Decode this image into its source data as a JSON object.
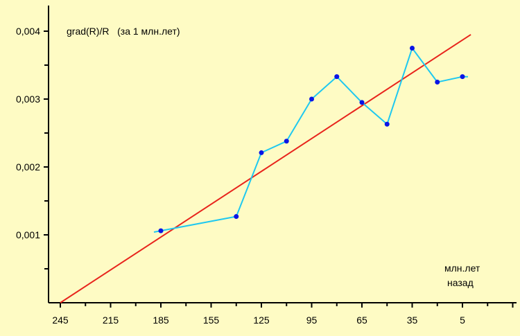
{
  "chart_data": {
    "type": "line",
    "title": "grad(R)/R   (за 1 млн.лет)",
    "xlabel_line1": "млн.лет",
    "xlabel_line2": "назад",
    "x_reversed": true,
    "xlim": [
      249,
      -37
    ],
    "ylim": [
      0,
      0.004
    ],
    "x_ticks": [
      245,
      215,
      185,
      155,
      125,
      95,
      65,
      35,
      5
    ],
    "x_tick_labels": [
      "245",
      "215",
      "185",
      "155",
      "125",
      "95",
      "65",
      "35",
      "5"
    ],
    "y_ticks": [
      0.001,
      0.002,
      0.003,
      0.004
    ],
    "y_tick_labels": [
      "0,001",
      "0,002",
      "0,003",
      "0,004"
    ],
    "grid": false,
    "series": [
      {
        "type": "line",
        "color": "#1ec8f0",
        "points": [
          [
            185,
            0.00106
          ],
          [
            140,
            0.00127
          ],
          [
            125,
            0.00221
          ],
          [
            110,
            0.00238
          ],
          [
            95,
            0.003
          ],
          [
            80,
            0.00333
          ],
          [
            65,
            0.00295
          ],
          [
            50,
            0.00263
          ],
          [
            35,
            0.00375
          ],
          [
            20,
            0.00325
          ],
          [
            5,
            0.00333
          ]
        ]
      },
      {
        "type": "line",
        "color": "#e8241c",
        "points": [
          [
            245,
            0
          ],
          [
            0,
            0.00395
          ]
        ]
      }
    ],
    "colors": {
      "background": "#fefbc4",
      "axis": "#000000",
      "data_line": "#1ec8f0",
      "data_marker": "#0a14e6",
      "trend_line": "#e8241c"
    }
  }
}
